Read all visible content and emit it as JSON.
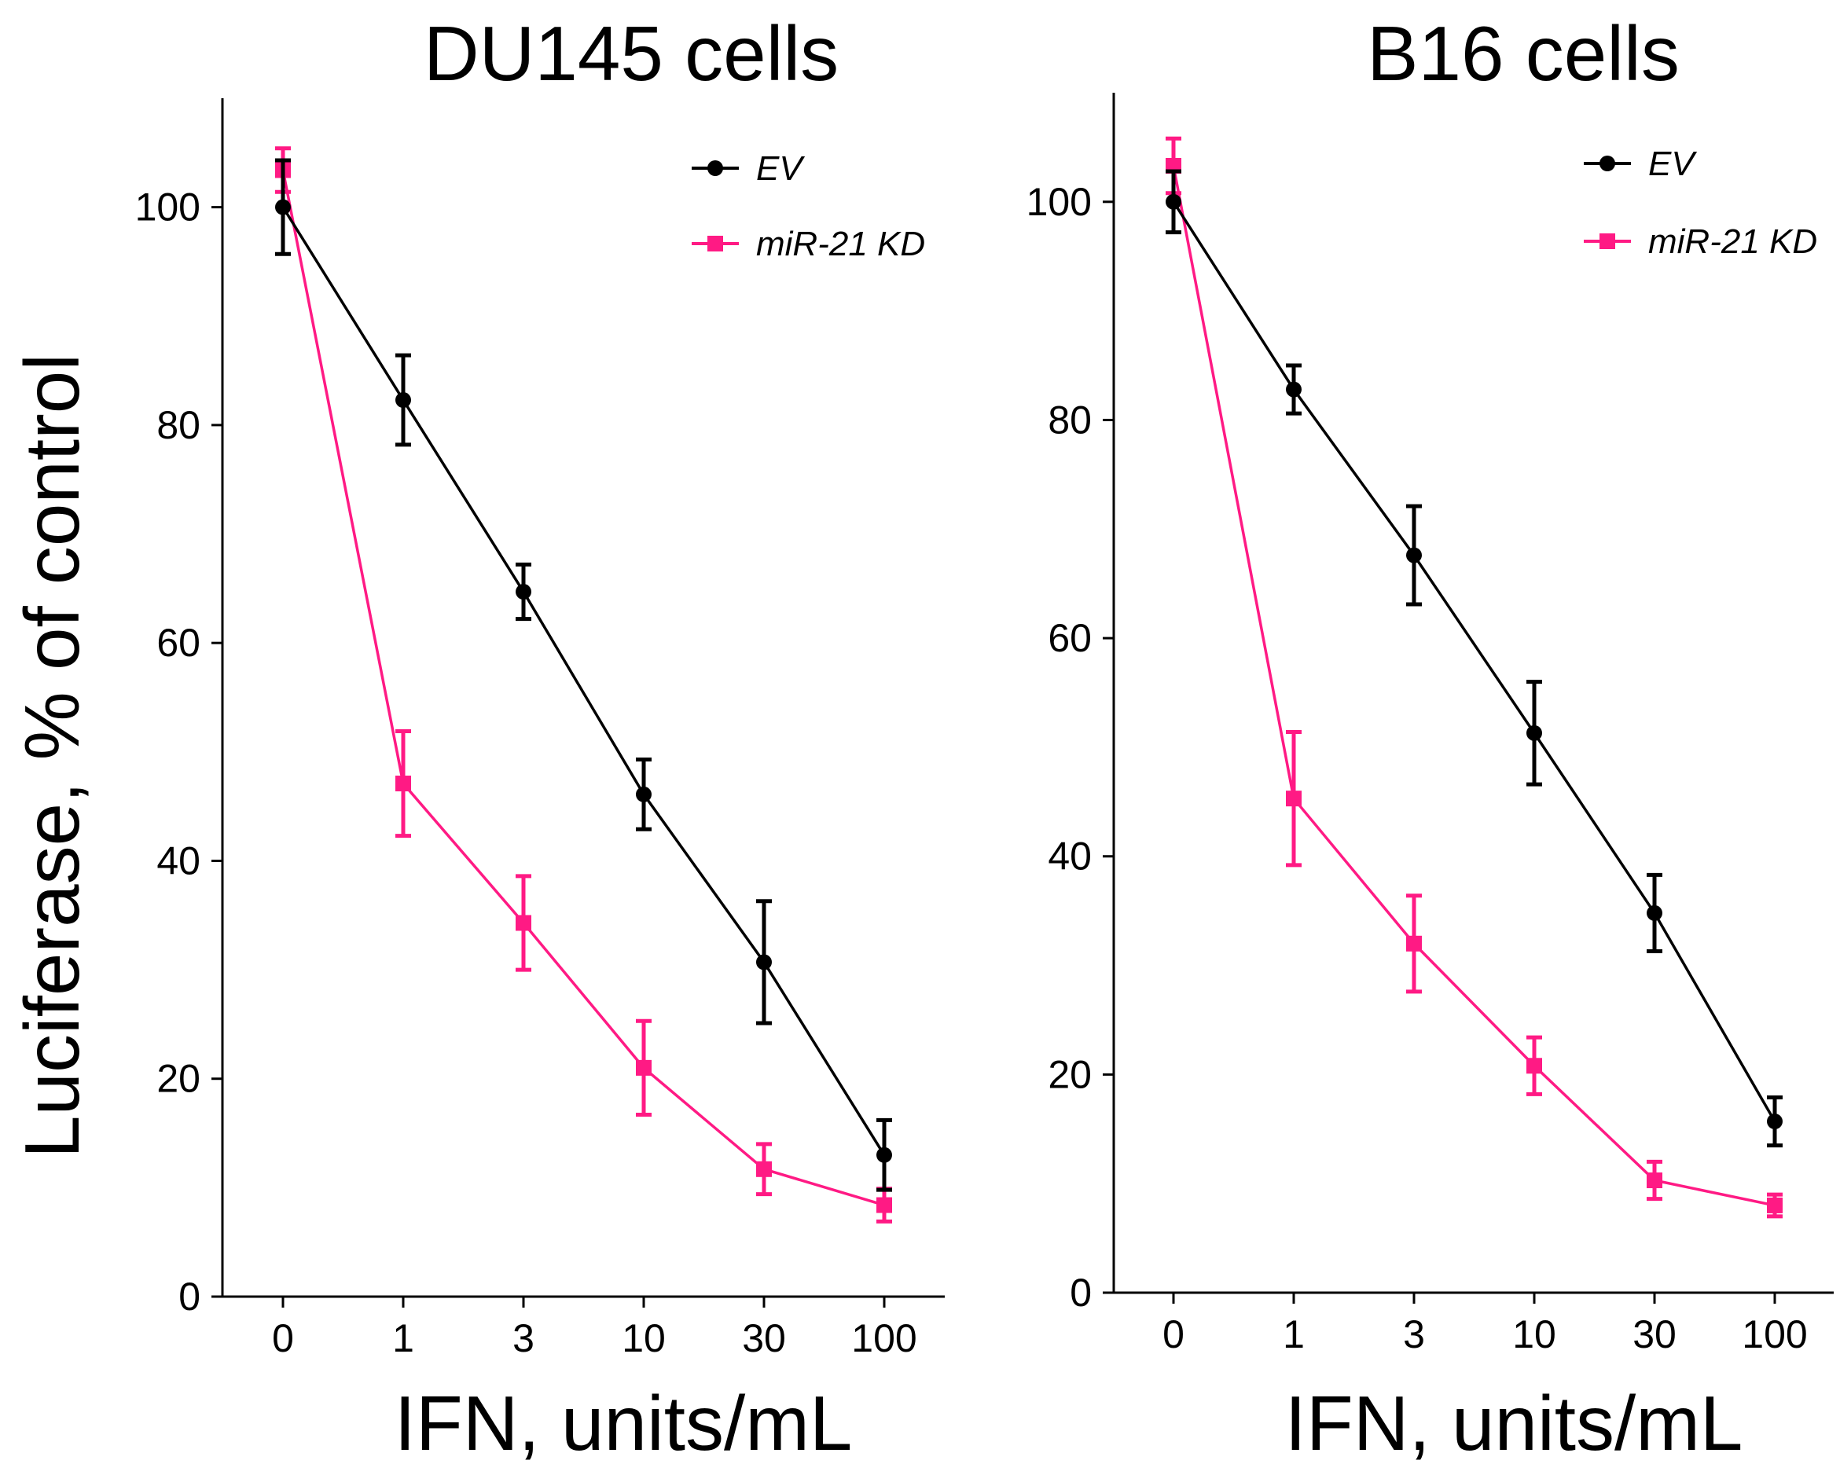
{
  "figure": {
    "ylabel": "Luciferase, % of control"
  },
  "chart_data": [
    {
      "type": "line",
      "title": "DU145 cells",
      "xlabel": "IFN, units/mL",
      "ylabel": "Luciferase, % of control",
      "categories": [
        "0",
        "1",
        "3",
        "10",
        "30",
        "100"
      ],
      "ylim": [
        0,
        110
      ],
      "yticks": [
        0,
        20,
        40,
        60,
        80,
        100
      ],
      "grid": false,
      "legend_position": "top-right",
      "series": [
        {
          "name": "EV",
          "color": "#000000",
          "marker": "circle",
          "values": [
            100,
            82.3,
            64.7,
            46.1,
            30.7,
            13.0
          ],
          "errors": [
            4.3,
            4.1,
            2.5,
            3.2,
            5.6,
            3.2
          ]
        },
        {
          "name": "miR-21 KD",
          "color": "#ff1a84",
          "marker": "square",
          "values": [
            103.4,
            47.1,
            34.3,
            21.0,
            11.7,
            8.4
          ],
          "errors": [
            2.0,
            4.8,
            4.3,
            4.3,
            2.3,
            1.5
          ]
        }
      ]
    },
    {
      "type": "line",
      "title": "B16 cells",
      "xlabel": "IFN, units/mL",
      "ylabel": "",
      "categories": [
        "0",
        "1",
        "3",
        "10",
        "30",
        "100"
      ],
      "ylim": [
        0,
        110
      ],
      "yticks": [
        0,
        20,
        40,
        60,
        80,
        100
      ],
      "grid": false,
      "legend_position": "top-right",
      "series": [
        {
          "name": "EV",
          "color": "#000000",
          "marker": "circle",
          "values": [
            100,
            82.8,
            67.6,
            51.3,
            34.8,
            15.7
          ],
          "errors": [
            2.8,
            2.2,
            4.5,
            4.7,
            3.5,
            2.2
          ]
        },
        {
          "name": "miR-21 KD",
          "color": "#ff1a84",
          "marker": "square",
          "values": [
            103.3,
            45.3,
            32.0,
            20.8,
            10.3,
            8.0
          ],
          "errors": [
            2.5,
            6.1,
            4.4,
            2.6,
            1.7,
            1.0
          ]
        }
      ]
    }
  ]
}
